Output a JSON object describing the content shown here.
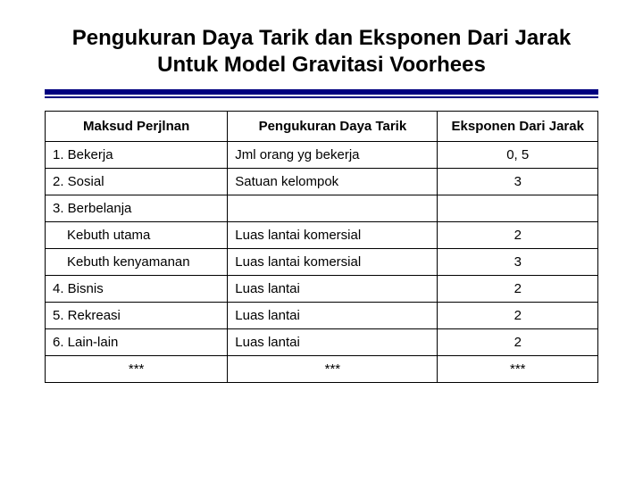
{
  "title": "Pengukuran Daya Tarik dan Eksponen Dari Jarak Untuk Model Gravitasi Voorhees",
  "table": {
    "columns": [
      "Maksud Perjlnan",
      "Pengukuran Daya Tarik",
      "Eksponen Dari Jarak"
    ],
    "col_widths": [
      "33%",
      "38%",
      "29%"
    ],
    "header_align": [
      "center",
      "center",
      "center"
    ],
    "body_align": [
      "left",
      "left",
      "center"
    ],
    "border_color": "#000000",
    "background_color": "#ffffff",
    "font_size": 15,
    "rows": [
      {
        "c0": "1. Bekerja",
        "c1": "Jml orang yg bekerja",
        "c2": "0, 5",
        "indent": false
      },
      {
        "c0": "2. Sosial",
        "c1": "Satuan kelompok",
        "c2": "3",
        "indent": false
      },
      {
        "c0": "3. Berbelanja",
        "c1": "",
        "c2": "",
        "indent": false
      },
      {
        "c0": "Kebuth utama",
        "c1": "Luas lantai komersial",
        "c2": "2",
        "indent": true
      },
      {
        "c0": "Kebuth kenyamanan",
        "c1": "Luas lantai komersial",
        "c2": "3",
        "indent": true
      },
      {
        "c0": "4. Bisnis",
        "c1": "Luas lantai",
        "c2": "2",
        "indent": false
      },
      {
        "c0": "5. Rekreasi",
        "c1": "Luas lantai",
        "c2": "2",
        "indent": false
      },
      {
        "c0": "6. Lain-lain",
        "c1": "Luas lantai",
        "c2": "2",
        "indent": false
      },
      {
        "c0": "***",
        "c1": "***",
        "c2": "***",
        "indent": false,
        "center_all": true
      }
    ]
  },
  "divider_color": "#000080"
}
